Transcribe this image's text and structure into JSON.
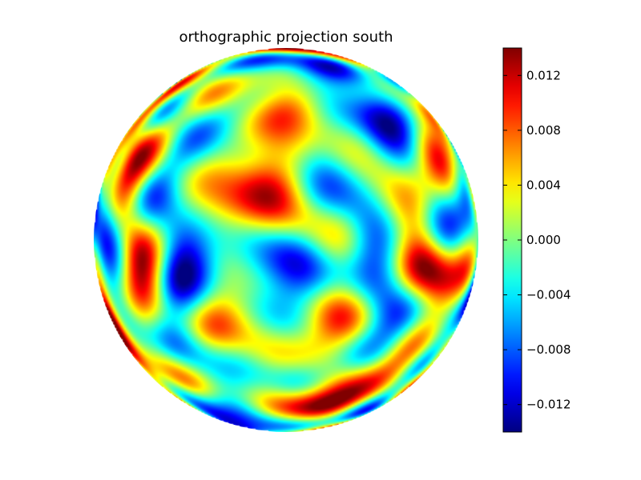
{
  "chart_data": {
    "type": "heatmap",
    "title": "orthographic projection south",
    "projection": "orthographic",
    "hemisphere": "south",
    "colormap": "jet",
    "colorbar": {
      "vmin": -0.014,
      "vmax": 0.014,
      "ticks": [
        0.012,
        0.008,
        0.004,
        0.0,
        -0.004,
        -0.008,
        -0.012
      ],
      "tick_labels": [
        "0.012",
        "0.008",
        "0.004",
        "0.000",
        "−0.004",
        "−0.008",
        "−0.012"
      ],
      "placement": "right"
    },
    "grid": false,
    "pattern_seed": 1207
  }
}
